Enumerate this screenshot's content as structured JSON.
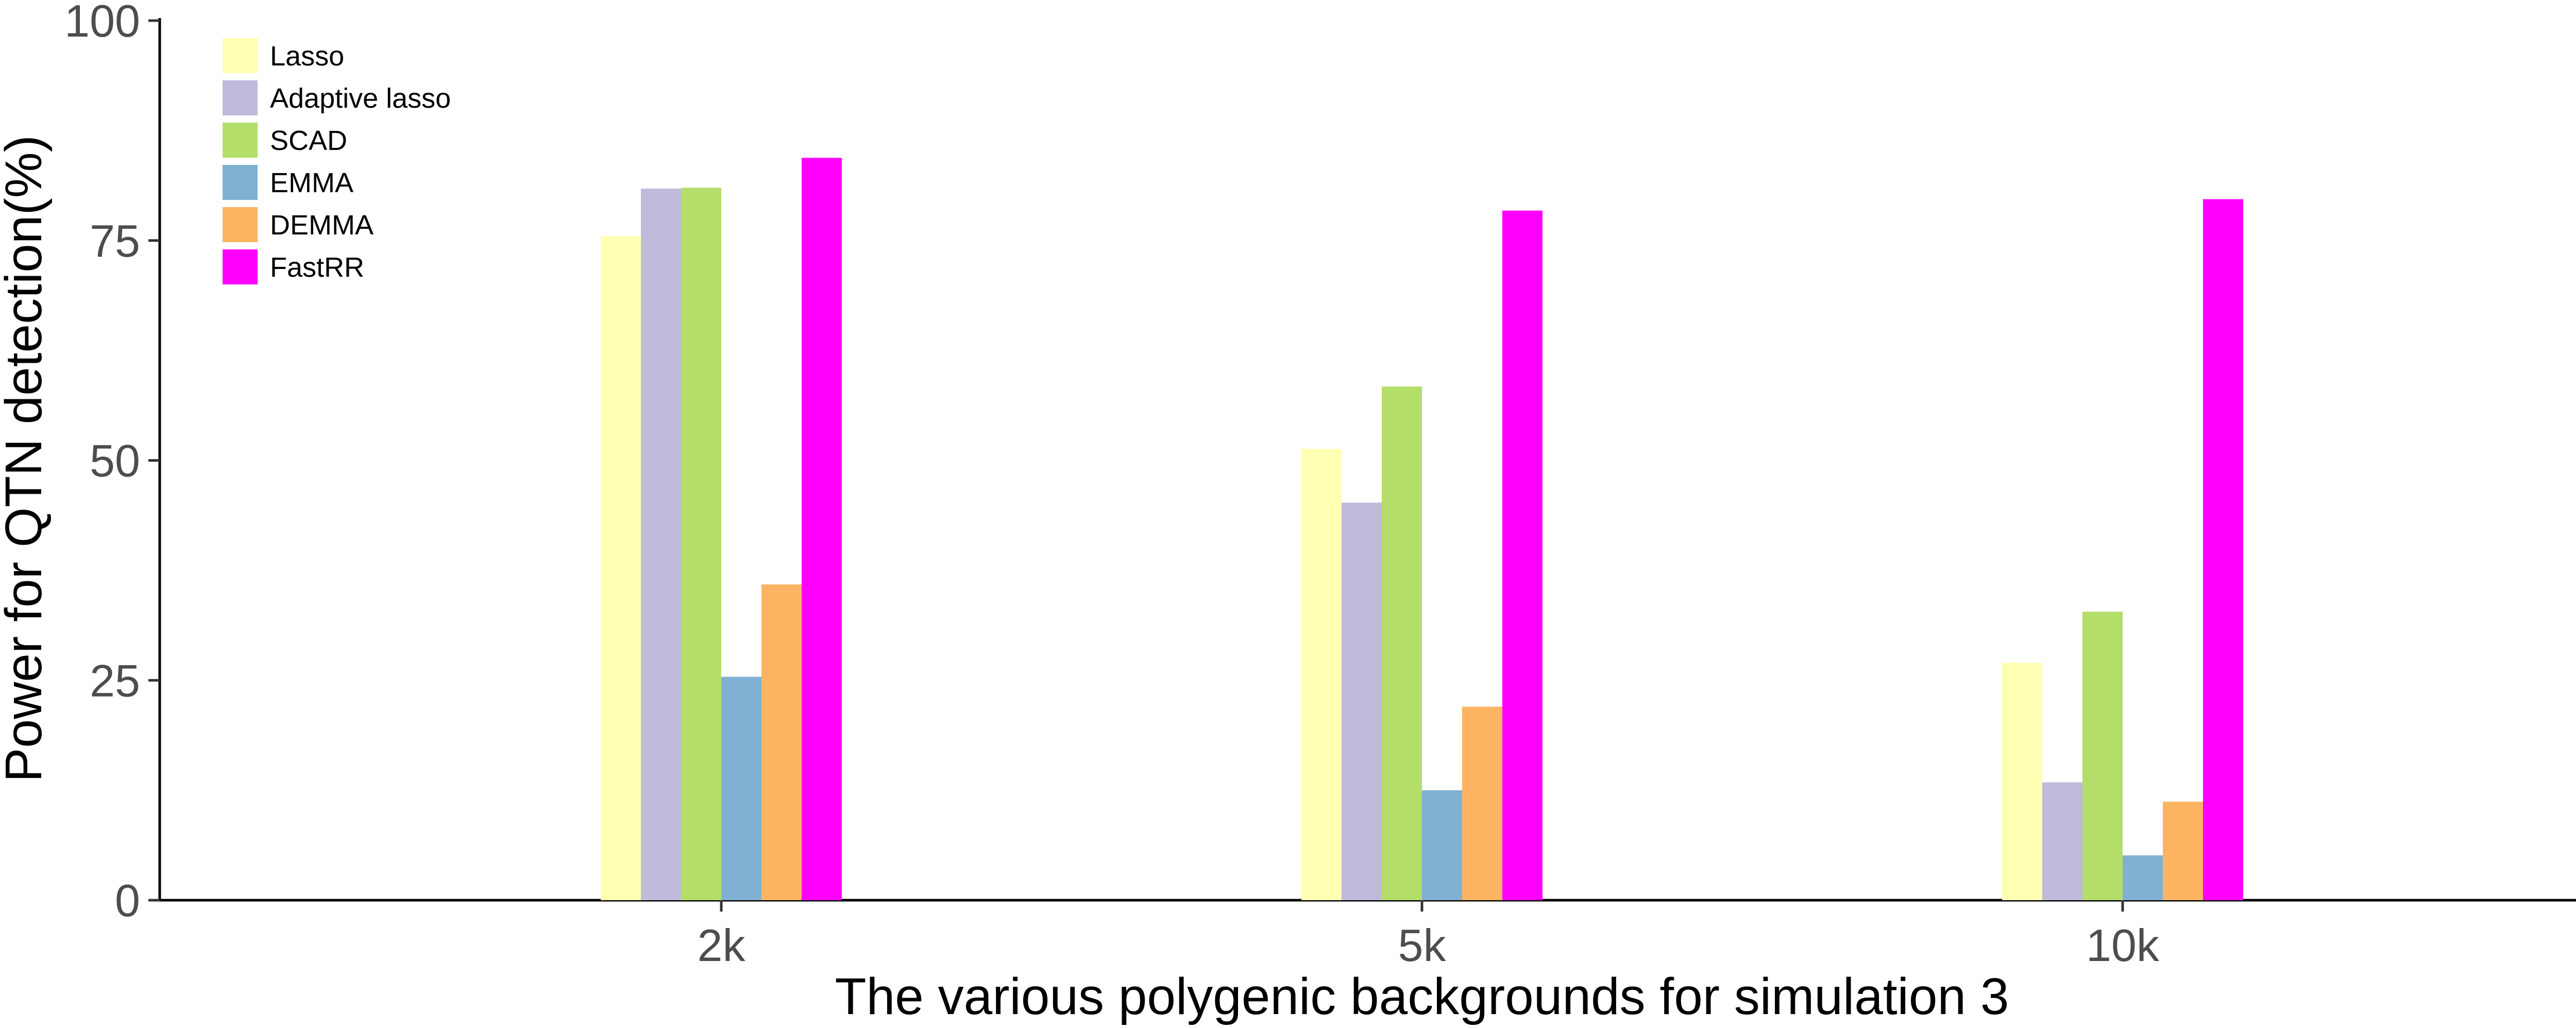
{
  "chart_data": {
    "type": "bar",
    "title": "",
    "xlabel": "The various polygenic backgrounds for simulation 3",
    "ylabel": "Power for QTN detection(%)",
    "categories": [
      "2k",
      "5k",
      "10k"
    ],
    "ylim": [
      0,
      100
    ],
    "yticks": [
      0,
      25,
      50,
      75,
      100
    ],
    "grid": false,
    "legend_position": "top-left",
    "series": [
      {
        "name": "Lasso",
        "color": "#FFFFB3",
        "values": [
          75.5,
          51.3,
          27.0
        ]
      },
      {
        "name": "Adaptive lasso",
        "color": "#BEBADA",
        "values": [
          80.9,
          45.2,
          13.4
        ]
      },
      {
        "name": "SCAD",
        "color": "#B3DE69",
        "values": [
          81.0,
          58.4,
          32.8
        ]
      },
      {
        "name": "EMMA",
        "color": "#80B1D3",
        "values": [
          25.4,
          12.5,
          5.1
        ]
      },
      {
        "name": "DEMMA",
        "color": "#FDB462",
        "values": [
          35.9,
          22.0,
          11.2
        ]
      },
      {
        "name": "FastRR",
        "color": "#FF00FF",
        "values": [
          84.4,
          78.4,
          79.7
        ]
      }
    ]
  }
}
